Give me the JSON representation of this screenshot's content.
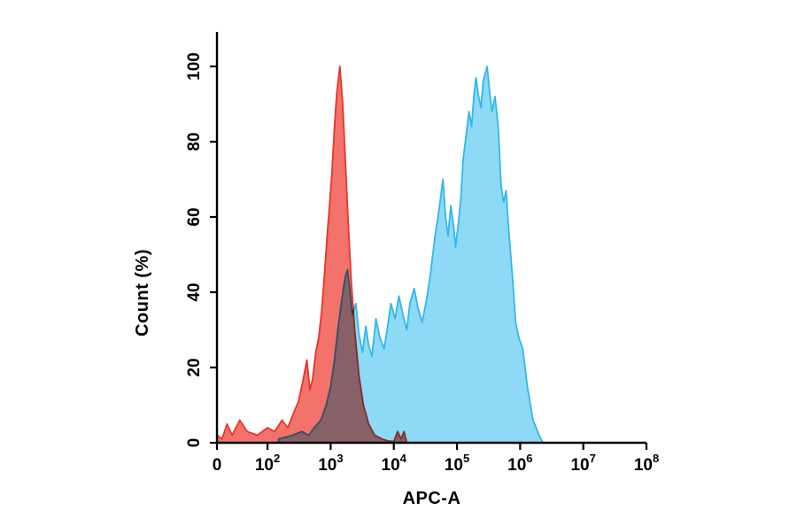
{
  "chart_data": {
    "type": "area",
    "title": "",
    "xlabel": "APC-A",
    "ylabel": "Count  (%)",
    "x_scale": "logicle (0 then log decades 10^2..10^8)",
    "ylim": [
      0,
      100
    ],
    "grid": false,
    "legend": "none",
    "axis_color": "#000000",
    "x_ticks": [
      {
        "label": "0",
        "exp": null,
        "value": 0
      },
      {
        "label": "10",
        "exp": "2",
        "value": 100
      },
      {
        "label": "10",
        "exp": "3",
        "value": 1000
      },
      {
        "label": "10",
        "exp": "4",
        "value": 10000
      },
      {
        "label": "10",
        "exp": "5",
        "value": 100000
      },
      {
        "label": "10",
        "exp": "6",
        "value": 1000000
      },
      {
        "label": "10",
        "exp": "7",
        "value": 10000000
      },
      {
        "label": "10",
        "exp": "8",
        "value": 100000000
      }
    ],
    "y_ticks": [
      0,
      20,
      40,
      60,
      80,
      100
    ],
    "series": [
      {
        "name": "blue-stained-sample",
        "fill": "#8ED9F5",
        "stroke": "#2FB8EA",
        "opacity": 1,
        "blend": "normal",
        "points": [
          [
            150,
            1
          ],
          [
            250,
            2
          ],
          [
            350,
            3
          ],
          [
            450,
            2
          ],
          [
            550,
            4
          ],
          [
            700,
            6
          ],
          [
            850,
            10
          ],
          [
            1000,
            15
          ],
          [
            1150,
            22
          ],
          [
            1300,
            30
          ],
          [
            1500,
            38
          ],
          [
            1700,
            44
          ],
          [
            1850,
            46
          ],
          [
            2000,
            41
          ],
          [
            2200,
            34
          ],
          [
            2500,
            37
          ],
          [
            2800,
            29
          ],
          [
            3200,
            24
          ],
          [
            3600,
            31
          ],
          [
            4000,
            26
          ],
          [
            4500,
            23
          ],
          [
            5200,
            33
          ],
          [
            6000,
            28
          ],
          [
            7000,
            25
          ],
          [
            8000,
            31
          ],
          [
            9000,
            37
          ],
          [
            10500,
            33
          ],
          [
            12000,
            39
          ],
          [
            14000,
            34
          ],
          [
            16000,
            30
          ],
          [
            18000,
            37
          ],
          [
            21000,
            41
          ],
          [
            24000,
            36
          ],
          [
            28000,
            32
          ],
          [
            33000,
            38
          ],
          [
            38000,
            45
          ],
          [
            45000,
            55
          ],
          [
            52000,
            62
          ],
          [
            60000,
            70
          ],
          [
            66000,
            60
          ],
          [
            72000,
            55
          ],
          [
            80000,
            63
          ],
          [
            88000,
            58
          ],
          [
            95000,
            52
          ],
          [
            105000,
            58
          ],
          [
            115000,
            65
          ],
          [
            125000,
            75
          ],
          [
            140000,
            82
          ],
          [
            155000,
            88
          ],
          [
            170000,
            84
          ],
          [
            185000,
            92
          ],
          [
            200000,
            97
          ],
          [
            220000,
            92
          ],
          [
            240000,
            89
          ],
          [
            260000,
            96
          ],
          [
            300000,
            100
          ],
          [
            330000,
            93
          ],
          [
            360000,
            88
          ],
          [
            400000,
            92
          ],
          [
            450000,
            84
          ],
          [
            500000,
            68
          ],
          [
            550000,
            64
          ],
          [
            600000,
            67
          ],
          [
            650000,
            58
          ],
          [
            750000,
            45
          ],
          [
            850000,
            32
          ],
          [
            950000,
            28
          ],
          [
            1100000,
            25
          ],
          [
            1300000,
            15
          ],
          [
            1600000,
            6
          ],
          [
            2000000,
            2
          ],
          [
            2300000,
            0
          ]
        ]
      },
      {
        "name": "red-control-sample",
        "fill": "#F3726B",
        "stroke": "#E8352B",
        "opacity": 1,
        "blend": "multiply",
        "points": [
          [
            0,
            2
          ],
          [
            10,
            1
          ],
          [
            20,
            5
          ],
          [
            30,
            2
          ],
          [
            45,
            6
          ],
          [
            60,
            3
          ],
          [
            80,
            2
          ],
          [
            100,
            4
          ],
          [
            130,
            3
          ],
          [
            170,
            6
          ],
          [
            210,
            4
          ],
          [
            260,
            8
          ],
          [
            310,
            11
          ],
          [
            360,
            16
          ],
          [
            420,
            22
          ],
          [
            470,
            14
          ],
          [
            520,
            17
          ],
          [
            580,
            24
          ],
          [
            650,
            28
          ],
          [
            720,
            35
          ],
          [
            800,
            45
          ],
          [
            880,
            55
          ],
          [
            950,
            62
          ],
          [
            1050,
            72
          ],
          [
            1150,
            84
          ],
          [
            1250,
            93
          ],
          [
            1400,
            100
          ],
          [
            1550,
            90
          ],
          [
            1700,
            76
          ],
          [
            1900,
            58
          ],
          [
            2100,
            44
          ],
          [
            2400,
            30
          ],
          [
            2800,
            18
          ],
          [
            3300,
            10
          ],
          [
            4000,
            5
          ],
          [
            5000,
            2
          ],
          [
            6500,
            1
          ],
          [
            8000,
            0.5
          ],
          [
            10000,
            0.3
          ],
          [
            11500,
            3
          ],
          [
            13000,
            1
          ],
          [
            14500,
            3
          ],
          [
            16000,
            0
          ]
        ]
      }
    ]
  }
}
